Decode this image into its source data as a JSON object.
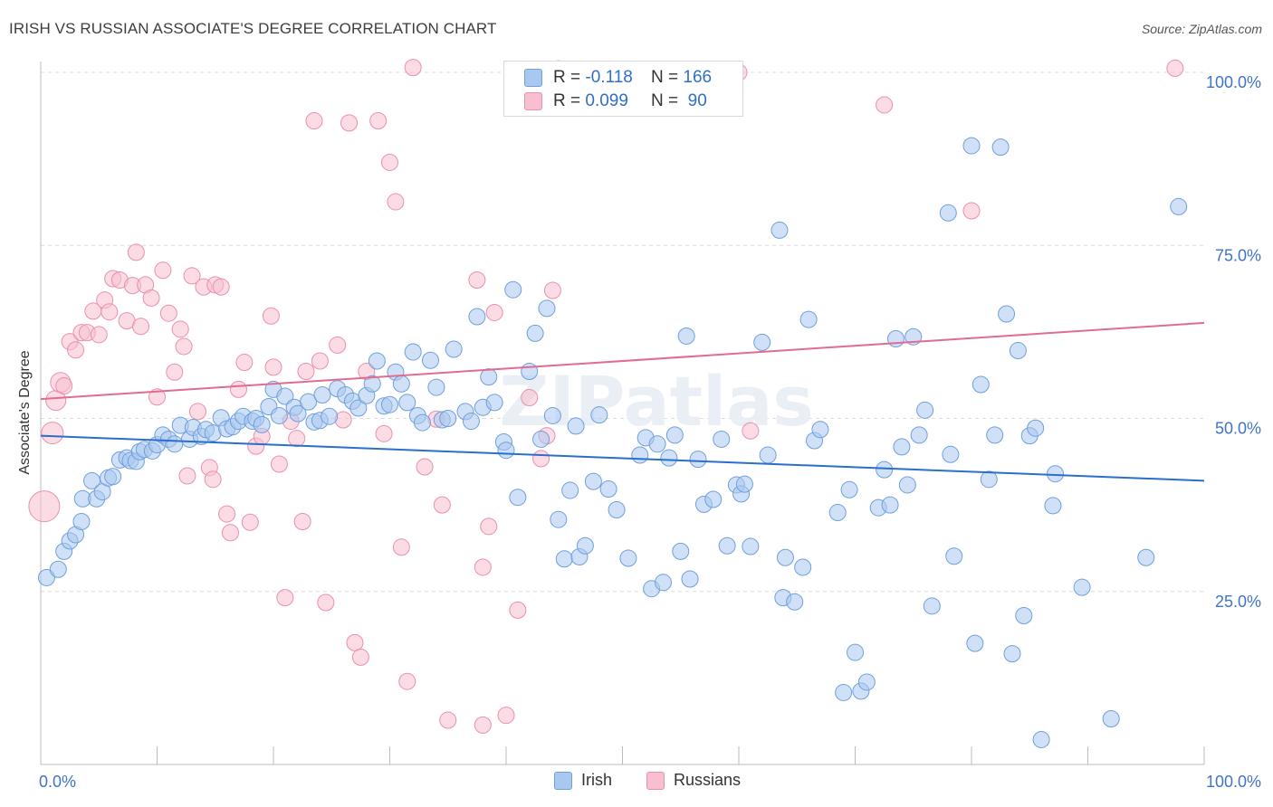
{
  "title": "IRISH VS RUSSIAN ASSOCIATE'S DEGREE CORRELATION CHART",
  "source": "Source: ZipAtlas.com",
  "watermark": "ZIPatlas",
  "colors": {
    "irish_fill": "#a9c8f0",
    "irish_stroke": "#6f9fdc",
    "irish_line": "#2a6fcc",
    "russian_fill": "#f7bfcf",
    "russian_stroke": "#eb8fab",
    "russian_line": "#e36a92",
    "tick_label": "#3f74c9",
    "grid": "#dcdcdc"
  },
  "legend": {
    "rows": [
      {
        "r_label": "R =",
        "r_value": "-0.118",
        "n_label": "N =",
        "n_value": "166"
      },
      {
        "r_label": "R =",
        "r_value": "0.099",
        "n_label": "N =",
        "n_value": "90"
      }
    ]
  },
  "bottom_legend": [
    "Irish",
    "Russians"
  ],
  "chart_data": {
    "type": "scatter",
    "title": "IRISH VS RUSSIAN ASSOCIATE'S DEGREE CORRELATION CHART",
    "xlabel": "",
    "ylabel": "Associate's Degree",
    "xlim": [
      0,
      100
    ],
    "ylim": [
      0,
      100
    ],
    "x_tick_labels": [
      "0.0%",
      "100.0%"
    ],
    "y_tick_labels": [
      "25.0%",
      "50.0%",
      "75.0%",
      "100.0%"
    ],
    "y_ticks": [
      25,
      50,
      75,
      100
    ],
    "grid": true,
    "legend_position": "top-center",
    "series": [
      {
        "name": "Irish",
        "r": -0.118,
        "n": 166,
        "trend": {
          "x": [
            0,
            100
          ],
          "y": [
            47.5,
            41.0
          ]
        },
        "points": [
          [
            0.5,
            27
          ],
          [
            1.5,
            28.2
          ],
          [
            2,
            30.8
          ],
          [
            2.5,
            32.3
          ],
          [
            3,
            33.2
          ],
          [
            3.5,
            35.1
          ],
          [
            3.6,
            38.4
          ],
          [
            4.4,
            41
          ],
          [
            4.8,
            38.4
          ],
          [
            5.3,
            39.4
          ],
          [
            5.8,
            41.4
          ],
          [
            6.2,
            41.6
          ],
          [
            6.8,
            44
          ],
          [
            7.4,
            44.3
          ],
          [
            7.7,
            43.9
          ],
          [
            8.2,
            43.8
          ],
          [
            8.5,
            45.2
          ],
          [
            8.9,
            45.5
          ],
          [
            9.6,
            45.3
          ],
          [
            10,
            46.2
          ],
          [
            10.5,
            47.6
          ],
          [
            11,
            47
          ],
          [
            11.5,
            46.3
          ],
          [
            12,
            49
          ],
          [
            12.8,
            47
          ],
          [
            13.1,
            48.7
          ],
          [
            13.8,
            47.4
          ],
          [
            14.2,
            48.4
          ],
          [
            14.8,
            47.9
          ],
          [
            15.5,
            50.1
          ],
          [
            16,
            48.5
          ],
          [
            16.5,
            48.8
          ],
          [
            17,
            49.6
          ],
          [
            17.4,
            50.3
          ],
          [
            18.2,
            49.6
          ],
          [
            18.5,
            50
          ],
          [
            19,
            49.1
          ],
          [
            19.6,
            51.7
          ],
          [
            20,
            54.2
          ],
          [
            20.5,
            50.4
          ],
          [
            21,
            53.2
          ],
          [
            21.8,
            51.6
          ],
          [
            22.1,
            50.7
          ],
          [
            23,
            52.4
          ],
          [
            23.5,
            49.5
          ],
          [
            24,
            49.7
          ],
          [
            24.2,
            53.4
          ],
          [
            24.8,
            50.3
          ],
          [
            25.5,
            54.3
          ],
          [
            26.2,
            53.4
          ],
          [
            26.8,
            52.5
          ],
          [
            27.3,
            51.5
          ],
          [
            28,
            53.3
          ],
          [
            28.5,
            55
          ],
          [
            28.9,
            58.3
          ],
          [
            29.5,
            51.8
          ],
          [
            30,
            52
          ],
          [
            30.5,
            56.7
          ],
          [
            31,
            55
          ],
          [
            31.5,
            52.3
          ],
          [
            32,
            59.6
          ],
          [
            32.4,
            50.4
          ],
          [
            32.8,
            49.4
          ],
          [
            33.5,
            58.4
          ],
          [
            34,
            54.5
          ],
          [
            34.5,
            49.8
          ],
          [
            35,
            50
          ],
          [
            35.5,
            60
          ],
          [
            36.5,
            51
          ],
          [
            37,
            49.6
          ],
          [
            37.5,
            64.7
          ],
          [
            38,
            51.6
          ],
          [
            38.5,
            56
          ],
          [
            39,
            52.3
          ],
          [
            39.8,
            46.6
          ],
          [
            40,
            45.4
          ],
          [
            40.6,
            68.6
          ],
          [
            41,
            38.6
          ],
          [
            42,
            56.8
          ],
          [
            42.5,
            62.3
          ],
          [
            43,
            47
          ],
          [
            43.5,
            65.9
          ],
          [
            44,
            50.4
          ],
          [
            44.5,
            35.4
          ],
          [
            45,
            29.7
          ],
          [
            45.5,
            39.6
          ],
          [
            46,
            48.9
          ],
          [
            46.3,
            30
          ],
          [
            46.8,
            31.6
          ],
          [
            47.5,
            40.9
          ],
          [
            48,
            50.5
          ],
          [
            48.8,
            39.8
          ],
          [
            49.5,
            36.8
          ],
          [
            50.5,
            29.8
          ],
          [
            51.5,
            44.7
          ],
          [
            52,
            47.2
          ],
          [
            52.5,
            25.4
          ],
          [
            53,
            46.3
          ],
          [
            53.5,
            26.3
          ],
          [
            54,
            44.3
          ],
          [
            54.5,
            47.6
          ],
          [
            55,
            30.8
          ],
          [
            55.5,
            61.9
          ],
          [
            55.8,
            26.8
          ],
          [
            56.5,
            44.1
          ],
          [
            57,
            37.6
          ],
          [
            57.8,
            38.3
          ],
          [
            58.5,
            47
          ],
          [
            59,
            31.6
          ],
          [
            59.8,
            40.4
          ],
          [
            60.2,
            39.1
          ],
          [
            60.5,
            40.5
          ],
          [
            61,
            31.5
          ],
          [
            62,
            61
          ],
          [
            62.5,
            44.7
          ],
          [
            63.5,
            77.2
          ],
          [
            63.8,
            24.1
          ],
          [
            64,
            29.9
          ],
          [
            64.8,
            23.5
          ],
          [
            65.5,
            28.5
          ],
          [
            66,
            64.3
          ],
          [
            66.5,
            46.8
          ],
          [
            67,
            48.4
          ],
          [
            68.5,
            36.4
          ],
          [
            69,
            10.4
          ],
          [
            69.5,
            39.7
          ],
          [
            70,
            16.2
          ],
          [
            70.5,
            10.6
          ],
          [
            71,
            11.9
          ],
          [
            72,
            37.1
          ],
          [
            72.5,
            42.6
          ],
          [
            73,
            37.5
          ],
          [
            73.5,
            61.5
          ],
          [
            74,
            45.9
          ],
          [
            74.5,
            40.4
          ],
          [
            75,
            61.8
          ],
          [
            75.5,
            47.6
          ],
          [
            76,
            51.2
          ],
          [
            76.6,
            22.9
          ],
          [
            78,
            79.7
          ],
          [
            78.2,
            44.8
          ],
          [
            78.5,
            30.1
          ],
          [
            80,
            89.4
          ],
          [
            80.3,
            17.5
          ],
          [
            80.8,
            54.9
          ],
          [
            81.5,
            41.2
          ],
          [
            82,
            47.6
          ],
          [
            82.5,
            89.2
          ],
          [
            83,
            65.1
          ],
          [
            83.5,
            16
          ],
          [
            84,
            59.8
          ],
          [
            84.5,
            21.5
          ],
          [
            85,
            47.5
          ],
          [
            85.5,
            48.6
          ],
          [
            86,
            3.6
          ],
          [
            87,
            37.4
          ],
          [
            87.2,
            42
          ],
          [
            89.5,
            25.6
          ],
          [
            92,
            6.6
          ],
          [
            95,
            29.9
          ],
          [
            97.8,
            80.6
          ]
        ]
      },
      {
        "name": "Russians",
        "r": 0.099,
        "n": 90,
        "trend": {
          "x": [
            0,
            100
          ],
          "y": [
            52.8,
            63.8
          ]
        },
        "points": [
          [
            0.3,
            37.3
          ],
          [
            1,
            47.9
          ],
          [
            1.3,
            52.6
          ],
          [
            1.7,
            55.2
          ],
          [
            2,
            54.7
          ],
          [
            2.5,
            61.1
          ],
          [
            3,
            59.9
          ],
          [
            3.5,
            62.4
          ],
          [
            4,
            62.4
          ],
          [
            4.5,
            65.5
          ],
          [
            5,
            62.1
          ],
          [
            5.5,
            67.1
          ],
          [
            5.9,
            65.4
          ],
          [
            6.2,
            70.2
          ],
          [
            6.8,
            70
          ],
          [
            7.4,
            64.1
          ],
          [
            7.9,
            69.2
          ],
          [
            8.2,
            74
          ],
          [
            8.6,
            63.3
          ],
          [
            9,
            69.3
          ],
          [
            9.5,
            67.4
          ],
          [
            10,
            53.1
          ],
          [
            10.5,
            71.4
          ],
          [
            11,
            65.2
          ],
          [
            11.5,
            56.7
          ],
          [
            12,
            62.9
          ],
          [
            12.3,
            60.4
          ],
          [
            12.6,
            41.7
          ],
          [
            13,
            70.6
          ],
          [
            13.5,
            51
          ],
          [
            14,
            69
          ],
          [
            14.5,
            42.9
          ],
          [
            14.8,
            41.2
          ],
          [
            15,
            69.3
          ],
          [
            15.5,
            69
          ],
          [
            16,
            36.2
          ],
          [
            16.3,
            33.5
          ],
          [
            17,
            54.2
          ],
          [
            17.5,
            58.1
          ],
          [
            18,
            35
          ],
          [
            18.5,
            46
          ],
          [
            19,
            47.4
          ],
          [
            19.8,
            64.8
          ],
          [
            20,
            57.4
          ],
          [
            20.5,
            43.4
          ],
          [
            21,
            24.1
          ],
          [
            21.5,
            49.6
          ],
          [
            22,
            47.1
          ],
          [
            22.5,
            35.1
          ],
          [
            22.8,
            56.8
          ],
          [
            23.5,
            93
          ],
          [
            24,
            58.3
          ],
          [
            24.5,
            23.4
          ],
          [
            25.5,
            60.6
          ],
          [
            26,
            49.8
          ],
          [
            26.5,
            92.7
          ],
          [
            27,
            17.6
          ],
          [
            27.5,
            15.5
          ],
          [
            28,
            56.8
          ],
          [
            29,
            93
          ],
          [
            29.5,
            47.8
          ],
          [
            30,
            87
          ],
          [
            30.5,
            81.3
          ],
          [
            31,
            31.4
          ],
          [
            31.5,
            12
          ],
          [
            32,
            100.7
          ],
          [
            33,
            43
          ],
          [
            34,
            49.9
          ],
          [
            34.5,
            37.5
          ],
          [
            35,
            6.4
          ],
          [
            37.5,
            70
          ],
          [
            38,
            5.7
          ],
          [
            38,
            28.5
          ],
          [
            38.5,
            34.4
          ],
          [
            39,
            65.3
          ],
          [
            40,
            7.1
          ],
          [
            41,
            22.3
          ],
          [
            42,
            53
          ],
          [
            43,
            44.2
          ],
          [
            43.5,
            47.5
          ],
          [
            44,
            68.5
          ],
          [
            44.5,
            100.5
          ],
          [
            60,
            100
          ],
          [
            61,
            48.2
          ],
          [
            72.5,
            95.3
          ],
          [
            80,
            80
          ],
          [
            97.5,
            100.6
          ]
        ]
      }
    ]
  }
}
